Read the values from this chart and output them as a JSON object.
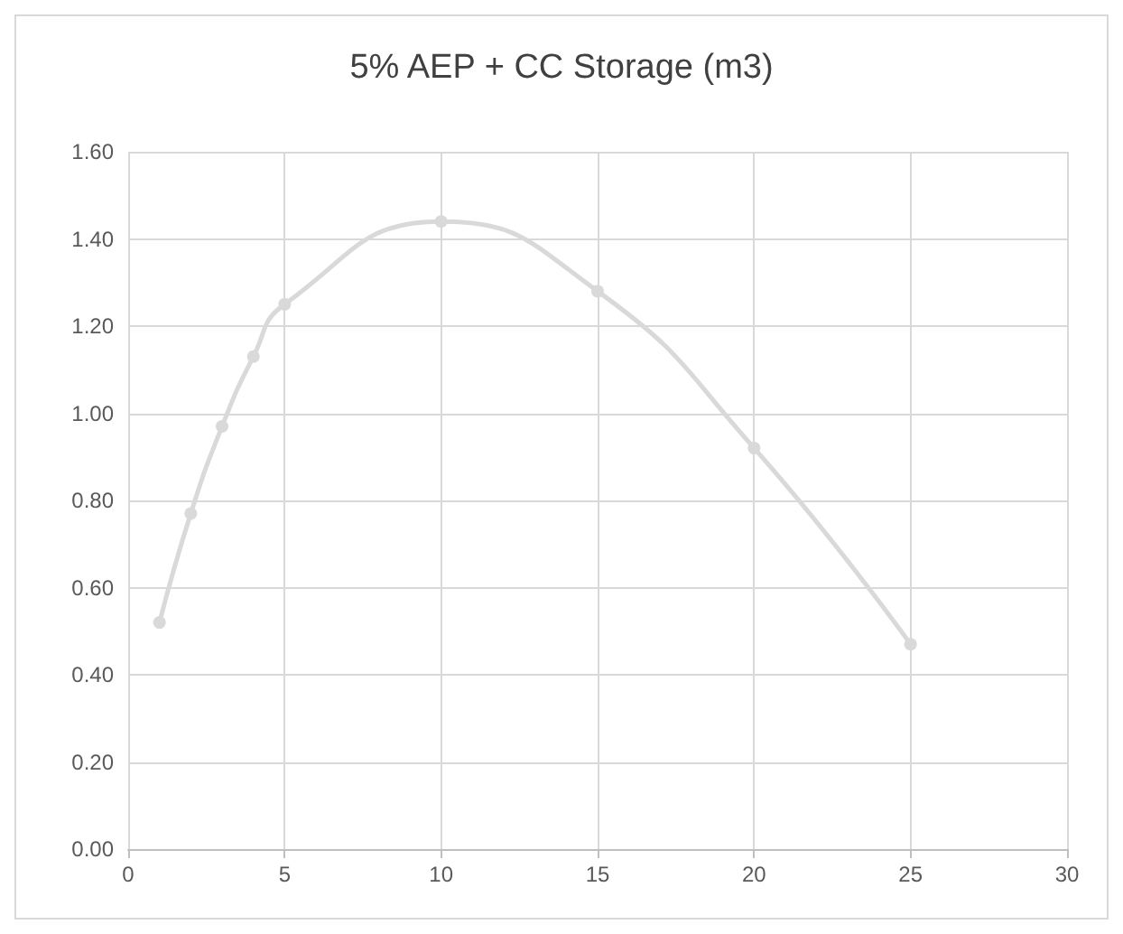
{
  "chart_data": {
    "type": "line",
    "title": "5% AEP + CC Storage (m3)",
    "x": [
      1,
      2,
      3,
      4,
      5,
      10,
      15,
      20,
      25
    ],
    "series": [
      {
        "color": "#d9d9d9",
        "values": [
          0.52,
          0.77,
          0.97,
          1.13,
          1.25,
          1.44,
          1.28,
          0.92,
          0.47
        ]
      }
    ],
    "xlim": [
      0,
      30
    ],
    "xticks": [
      0,
      5,
      10,
      15,
      20,
      25,
      30
    ],
    "ylim": [
      0,
      1.6
    ],
    "yticks": [
      {
        "value": 0,
        "label": "0.00"
      },
      {
        "value": 0.2,
        "label": "0.20"
      },
      {
        "value": 0.4,
        "label": "0.40"
      },
      {
        "value": 0.6,
        "label": "0.60"
      },
      {
        "value": 0.8,
        "label": "0.80"
      },
      {
        "value": 1,
        "label": "1.00"
      },
      {
        "value": 1.2,
        "label": "1.20"
      },
      {
        "value": 1.4,
        "label": "1.40"
      },
      {
        "value": 1.6,
        "label": "1.60"
      }
    ],
    "grid": true,
    "marker": "circle",
    "line_style": "solid"
  }
}
